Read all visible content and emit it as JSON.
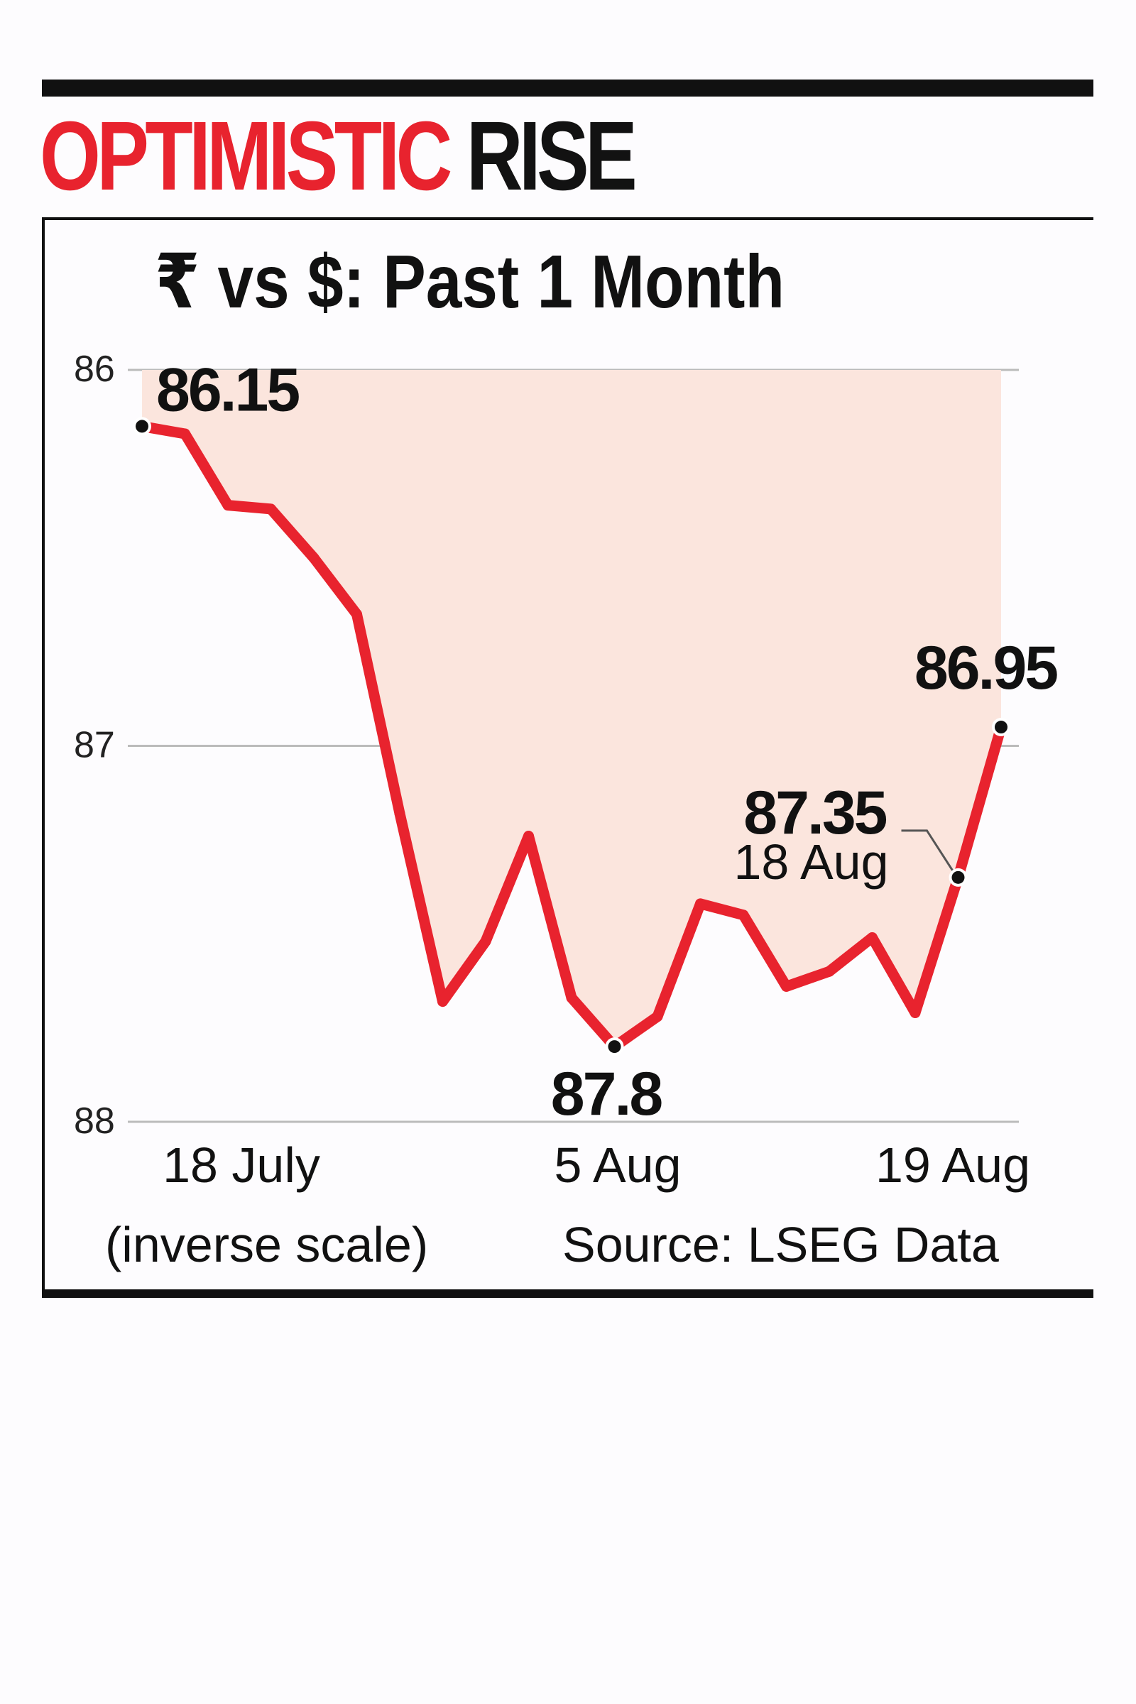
{
  "headline": {
    "part1": "OPTIMISTIC",
    "part2": "RISE"
  },
  "colors": {
    "headline_red": "#e8232e",
    "line": "#e8232e",
    "area_fill": "#fbe5dd",
    "text": "#111111",
    "grid": "#bbbbbb"
  },
  "chart_data": {
    "type": "area",
    "title": "₹ vs $: Past 1 Month",
    "y_scale": "inverse",
    "ylim": [
      86,
      88
    ],
    "yticks": [
      86,
      87,
      88
    ],
    "grid": "horizontal",
    "x_ticks": [
      "18 July",
      "5 Aug",
      "19 Aug"
    ],
    "scale_note": "(inverse scale)",
    "source": "Source: LSEG Data",
    "series": [
      {
        "values": [
          86.15,
          86.17,
          86.36,
          86.37,
          86.5,
          86.65,
          87.18,
          87.68,
          87.52,
          87.24,
          87.67,
          87.8,
          87.72,
          87.42,
          87.45,
          87.64,
          87.6,
          87.51,
          87.71,
          87.35,
          86.95
        ]
      }
    ],
    "annotations": [
      {
        "index": 0,
        "label": "86.15"
      },
      {
        "index": 11,
        "label": "87.8"
      },
      {
        "index": 19,
        "label": "87.35",
        "sublabel": "18 Aug"
      },
      {
        "index": 20,
        "label": "86.95"
      }
    ]
  }
}
